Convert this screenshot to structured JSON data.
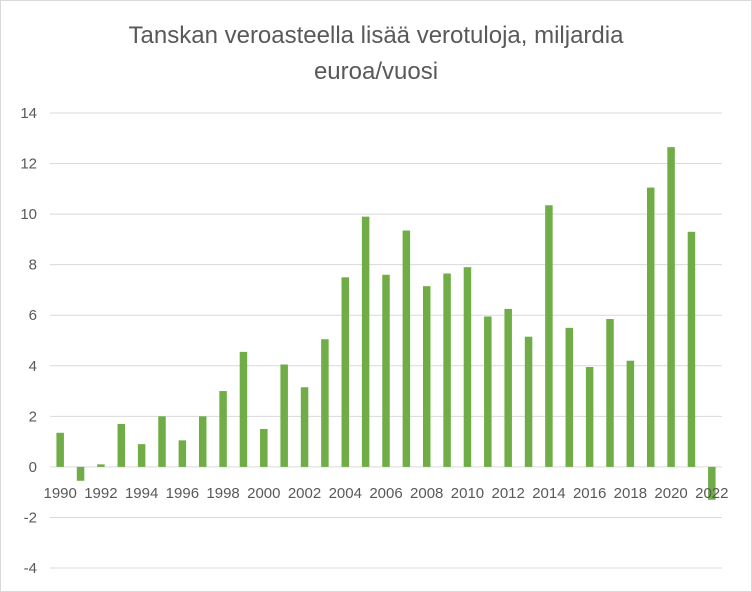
{
  "chart_data": {
    "type": "bar",
    "title_lines": [
      "Tanskan veroasteella lisää verotuloja, miljardia",
      "euroa/vuosi"
    ],
    "categories": [
      "1990",
      "1991",
      "1992",
      "1993",
      "1994",
      "1995",
      "1996",
      "1997",
      "1998",
      "1999",
      "2000",
      "2001",
      "2002",
      "2003",
      "2004",
      "2005",
      "2006",
      "2007",
      "2008",
      "2009",
      "2010",
      "2011",
      "2012",
      "2013",
      "2014",
      "2015",
      "2016",
      "2017",
      "2018",
      "2019",
      "2020",
      "2021",
      "2022"
    ],
    "x_tick_labels": [
      "1990",
      "1992",
      "1994",
      "1996",
      "1998",
      "2000",
      "2002",
      "2004",
      "2006",
      "2008",
      "2010",
      "2012",
      "2014",
      "2016",
      "2018",
      "2020",
      "2022"
    ],
    "values": [
      1.35,
      -0.55,
      0.1,
      1.7,
      0.9,
      2.0,
      1.05,
      2.0,
      3.0,
      4.55,
      1.5,
      4.05,
      3.15,
      5.05,
      7.5,
      9.9,
      7.6,
      9.35,
      7.15,
      7.65,
      7.9,
      5.95,
      6.25,
      5.15,
      10.35,
      5.5,
      3.95,
      5.85,
      4.2,
      11.05,
      12.65,
      9.3,
      -1.3
    ],
    "ylim": [
      -4,
      14
    ],
    "y_ticks": [
      -4,
      -2,
      0,
      2,
      4,
      6,
      8,
      10,
      12,
      14
    ],
    "grid": true,
    "bar_color": "#70ad47",
    "grid_color": "#d9d9d9",
    "text_color": "#595959"
  }
}
